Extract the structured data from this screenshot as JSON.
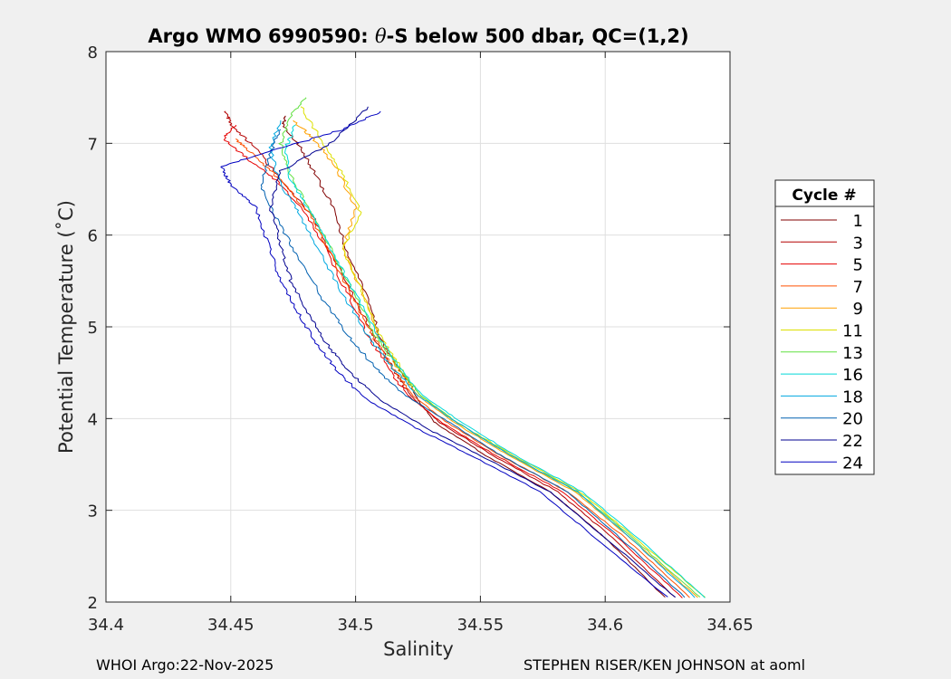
{
  "chart_data": {
    "type": "line",
    "title_prefix": "Argo WMO 6990590: ",
    "title_theta": "θ",
    "title_suffix": "-S below 500 dbar,  QC=(1,2)",
    "xlabel": "Salinity",
    "ylabel": "Potential Temperature (˚C)",
    "xlim": [
      34.4,
      34.65
    ],
    "ylim": [
      2,
      8
    ],
    "xticks": [
      34.4,
      34.45,
      34.5,
      34.55,
      34.6,
      34.65
    ],
    "xtick_labels": [
      "34.4",
      "34.45",
      "34.5",
      "34.55",
      "34.6",
      "34.65"
    ],
    "yticks": [
      2,
      3,
      4,
      5,
      6,
      7,
      8
    ],
    "ytick_labels": [
      "2",
      "3",
      "4",
      "5",
      "6",
      "7",
      "8"
    ],
    "grid": true,
    "legend": {
      "title": "Cycle #",
      "placement": "right",
      "entries": [
        {
          "label": "1",
          "color": "#800000"
        },
        {
          "label": "3",
          "color": "#b30000"
        },
        {
          "label": "5",
          "color": "#e60000"
        },
        {
          "label": "7",
          "color": "#ff5000"
        },
        {
          "label": "9",
          "color": "#ffa000"
        },
        {
          "label": "11",
          "color": "#dde000"
        },
        {
          "label": "13",
          "color": "#60e040"
        },
        {
          "label": "16",
          "color": "#00d8d8"
        },
        {
          "label": "18",
          "color": "#00a8e0"
        },
        {
          "label": "20",
          "color": "#0060b0"
        },
        {
          "label": "22",
          "color": "#000090"
        },
        {
          "label": "24",
          "color": "#0000c0"
        }
      ]
    },
    "series": [
      {
        "name": "1",
        "color": "#800000",
        "s": [
          34.624,
          34.6,
          34.578,
          34.552,
          34.532,
          34.525,
          34.52,
          34.511,
          34.505,
          34.496,
          34.492,
          34.484,
          34.478,
          34.471,
          34.472
        ],
        "t": [
          2.05,
          2.7,
          3.2,
          3.6,
          3.95,
          4.2,
          4.45,
          4.8,
          5.3,
          5.85,
          6.25,
          6.65,
          6.95,
          7.2,
          7.3
        ]
      },
      {
        "name": "3",
        "color": "#b30000",
        "s": [
          34.628,
          34.603,
          34.581,
          34.555,
          34.534,
          34.522,
          34.516,
          34.508,
          34.5,
          34.49,
          34.483,
          34.47,
          34.46,
          34.45,
          34.448
        ],
        "t": [
          2.05,
          2.7,
          3.2,
          3.6,
          3.95,
          4.25,
          4.5,
          4.85,
          5.3,
          5.8,
          6.2,
          6.6,
          6.95,
          7.2,
          7.35
        ]
      },
      {
        "name": "5",
        "color": "#e60000",
        "s": [
          34.631,
          34.605,
          34.583,
          34.556,
          34.535,
          34.521,
          34.513,
          34.505,
          34.497,
          34.488,
          34.48,
          34.468,
          34.456,
          34.447,
          34.452
        ],
        "t": [
          2.05,
          2.7,
          3.2,
          3.6,
          3.95,
          4.25,
          4.55,
          4.9,
          5.35,
          5.85,
          6.25,
          6.6,
          6.85,
          7.05,
          7.2
        ]
      },
      {
        "name": "7",
        "color": "#ff5000",
        "s": [
          34.634,
          34.608,
          34.585,
          34.558,
          34.537,
          34.523,
          34.515,
          34.507,
          34.498,
          34.489,
          34.481,
          34.47,
          34.46,
          34.452
        ],
        "t": [
          2.05,
          2.7,
          3.2,
          3.6,
          3.95,
          4.25,
          4.55,
          4.9,
          5.35,
          5.85,
          6.25,
          6.6,
          6.85,
          7.05
        ]
      },
      {
        "name": "9",
        "color": "#ffa000",
        "s": [
          34.637,
          34.61,
          34.588,
          34.561,
          34.54,
          34.525,
          34.517,
          34.509,
          34.503,
          34.495,
          34.5,
          34.492,
          34.483,
          34.475
        ],
        "t": [
          2.05,
          2.7,
          3.2,
          3.6,
          3.95,
          4.25,
          4.55,
          4.9,
          5.35,
          5.85,
          6.3,
          6.75,
          7.05,
          7.25
        ]
      },
      {
        "name": "11",
        "color": "#dde000",
        "s": [
          34.64,
          34.612,
          34.59,
          34.563,
          34.541,
          34.526,
          34.518,
          34.51,
          34.503,
          34.495,
          34.502,
          34.494,
          34.486,
          34.478
        ],
        "t": [
          2.05,
          2.7,
          3.2,
          3.6,
          3.95,
          4.25,
          4.55,
          4.9,
          5.35,
          5.85,
          6.25,
          6.7,
          7.05,
          7.4
        ]
      },
      {
        "name": "13",
        "color": "#60e040",
        "s": [
          34.638,
          34.611,
          34.589,
          34.562,
          34.541,
          34.526,
          34.517,
          34.508,
          34.5,
          34.49,
          34.482,
          34.474,
          34.47,
          34.474,
          34.48
        ],
        "t": [
          2.05,
          2.7,
          3.2,
          3.6,
          3.95,
          4.25,
          4.55,
          4.9,
          5.35,
          5.85,
          6.25,
          6.65,
          7.0,
          7.3,
          7.5
        ]
      },
      {
        "name": "16",
        "color": "#00d8d8",
        "s": [
          34.64,
          34.613,
          34.591,
          34.564,
          34.543,
          34.527,
          34.518,
          34.509,
          34.5,
          34.49,
          34.482,
          34.474,
          34.472,
          34.476
        ],
        "t": [
          2.05,
          2.7,
          3.2,
          3.6,
          3.95,
          4.25,
          4.55,
          4.9,
          5.35,
          5.85,
          6.25,
          6.6,
          6.95,
          7.2
        ]
      },
      {
        "name": "18",
        "color": "#00a8e0",
        "s": [
          34.636,
          34.61,
          34.589,
          34.562,
          34.541,
          34.525,
          34.515,
          34.505,
          34.495,
          34.485,
          34.477,
          34.469,
          34.466,
          34.47
        ],
        "t": [
          2.05,
          2.7,
          3.2,
          3.6,
          3.95,
          4.25,
          4.55,
          4.9,
          5.35,
          5.85,
          6.25,
          6.6,
          6.95,
          7.25
        ]
      },
      {
        "name": "20",
        "color": "#0060b0",
        "s": [
          34.632,
          34.606,
          34.585,
          34.558,
          34.538,
          34.52,
          34.508,
          34.497,
          34.487,
          34.476,
          34.468,
          34.462,
          34.466,
          34.47
        ],
        "t": [
          2.05,
          2.7,
          3.2,
          3.6,
          3.95,
          4.25,
          4.55,
          4.9,
          5.3,
          5.8,
          6.2,
          6.55,
          6.9,
          7.15
        ]
      },
      {
        "name": "22",
        "color": "#000090",
        "s": [
          34.628,
          34.6,
          34.578,
          34.55,
          34.528,
          34.51,
          34.5,
          34.49,
          34.482,
          34.474,
          34.47,
          34.466,
          34.47,
          34.49,
          34.505
        ],
        "t": [
          2.05,
          2.7,
          3.2,
          3.6,
          3.9,
          4.2,
          4.45,
          4.75,
          5.1,
          5.5,
          5.9,
          6.3,
          6.7,
          7.0,
          7.4
        ]
      },
      {
        "name": "24",
        "color": "#0000c0",
        "s": [
          34.625,
          34.596,
          34.574,
          34.546,
          34.524,
          34.505,
          34.495,
          34.486,
          34.478,
          34.47,
          34.465,
          34.46,
          34.45,
          34.446,
          34.47,
          34.495,
          34.51
        ],
        "t": [
          2.05,
          2.7,
          3.2,
          3.6,
          3.9,
          4.2,
          4.45,
          4.75,
          5.1,
          5.5,
          5.9,
          6.3,
          6.55,
          6.75,
          6.95,
          7.15,
          7.35
        ]
      }
    ]
  },
  "footer": {
    "left": "WHOI Argo:22-Nov-2025",
    "right": "STEPHEN RISER/KEN JOHNSON at aoml"
  }
}
